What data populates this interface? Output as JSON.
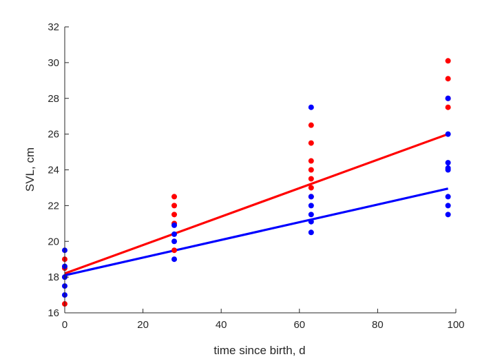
{
  "chart_data": {
    "type": "scatter",
    "xlabel": "time since birth, d",
    "ylabel": "SVL, cm",
    "xlim": [
      0,
      100
    ],
    "ylim": [
      16,
      32
    ],
    "x_ticks": [
      0,
      20,
      40,
      60,
      80,
      100
    ],
    "y_ticks": [
      16,
      18,
      20,
      22,
      24,
      26,
      28,
      30,
      32
    ],
    "grid": false,
    "series": [
      {
        "color": "#ff0000",
        "points": [
          {
            "x": 0,
            "y": 16.5
          },
          {
            "x": 0,
            "y": 18.0
          },
          {
            "x": 0,
            "y": 18.5
          },
          {
            "x": 0,
            "y": 19.0
          },
          {
            "x": 28,
            "y": 19.5
          },
          {
            "x": 28,
            "y": 21.0
          },
          {
            "x": 28,
            "y": 21.5
          },
          {
            "x": 28,
            "y": 22.0
          },
          {
            "x": 28,
            "y": 22.5
          },
          {
            "x": 63,
            "y": 22.5
          },
          {
            "x": 63,
            "y": 23.0
          },
          {
            "x": 63,
            "y": 23.5
          },
          {
            "x": 63,
            "y": 24.0
          },
          {
            "x": 63,
            "y": 24.5
          },
          {
            "x": 63,
            "y": 25.5
          },
          {
            "x": 63,
            "y": 26.5
          },
          {
            "x": 98,
            "y": 27.5
          },
          {
            "x": 98,
            "y": 28.0
          },
          {
            "x": 98,
            "y": 29.1
          },
          {
            "x": 98,
            "y": 30.1
          }
        ],
        "fit_line": [
          {
            "x": 0,
            "y": 18.2
          },
          {
            "x": 98,
            "y": 26.0
          }
        ]
      },
      {
        "color": "#0000ff",
        "points": [
          {
            "x": 0,
            "y": 17.0
          },
          {
            "x": 0,
            "y": 17.5
          },
          {
            "x": 0,
            "y": 18.0
          },
          {
            "x": 0,
            "y": 18.6
          },
          {
            "x": 0,
            "y": 19.5
          },
          {
            "x": 28,
            "y": 19.0
          },
          {
            "x": 28,
            "y": 20.0
          },
          {
            "x": 28,
            "y": 20.4
          },
          {
            "x": 28,
            "y": 20.9
          },
          {
            "x": 63,
            "y": 20.5
          },
          {
            "x": 63,
            "y": 21.1
          },
          {
            "x": 63,
            "y": 21.5
          },
          {
            "x": 63,
            "y": 22.0
          },
          {
            "x": 63,
            "y": 22.5
          },
          {
            "x": 63,
            "y": 27.5
          },
          {
            "x": 98,
            "y": 21.5
          },
          {
            "x": 98,
            "y": 22.0
          },
          {
            "x": 98,
            "y": 22.5
          },
          {
            "x": 98,
            "y": 24.0
          },
          {
            "x": 98,
            "y": 24.1
          },
          {
            "x": 98,
            "y": 24.4
          },
          {
            "x": 98,
            "y": 26.0
          },
          {
            "x": 98,
            "y": 28.0
          }
        ],
        "fit_line": [
          {
            "x": 0,
            "y": 18.1
          },
          {
            "x": 98,
            "y": 22.95
          }
        ]
      }
    ]
  }
}
